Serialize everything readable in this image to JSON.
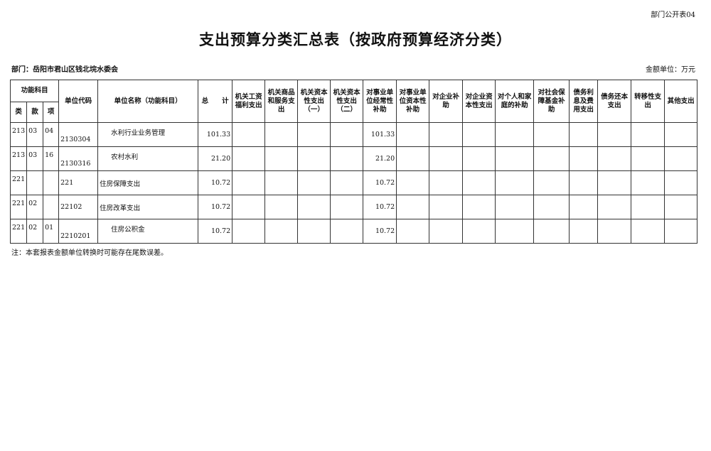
{
  "form_no": "部门公开表04",
  "title": "支出预算分类汇总表（按政府预算经济分类）",
  "department": "部门：岳阳市君山区钱北垸水委会",
  "unit": "金额单位：万元",
  "headers": {
    "func_group": "功能科目",
    "lei": "类",
    "kuan": "款",
    "xiang": "项",
    "code": "单位代码",
    "name": "单位名称（功能科目）",
    "total": "总　　计",
    "cols": [
      "机关工资福利支出",
      "机关商品和服务支出",
      "机关资本性支出（一）",
      "机关资本性支出（二）",
      "对事业单位经常性补助",
      "对事业单位资本性补助",
      "对企业补助",
      "对企业资本性支出",
      "对个人和家庭的补助",
      "对社会保障基金补助",
      "债务利息及费用支出",
      "债务还本支出",
      "转移性支出",
      "其他支出"
    ]
  },
  "rows": [
    {
      "lei": "213",
      "kuan": "03",
      "xiang": "04",
      "code": "2130304",
      "name": "水利行业业务管理",
      "indent": true,
      "total": "101.33",
      "c5": "101.33"
    },
    {
      "lei": "213",
      "kuan": "03",
      "xiang": "16",
      "code": "2130316",
      "name": "农村水利",
      "indent": true,
      "total": "21.20",
      "c5": "21.20"
    },
    {
      "lei": "221",
      "kuan": "",
      "xiang": "",
      "code": "221",
      "name": "住房保障支出",
      "indent": false,
      "total": "10.72",
      "c5": "10.72"
    },
    {
      "lei": "221",
      "kuan": "02",
      "xiang": "",
      "code": "22102",
      "name": "住房改革支出",
      "indent": false,
      "total": "10.72",
      "c5": "10.72"
    },
    {
      "lei": "221",
      "kuan": "02",
      "xiang": "01",
      "code": "2210201",
      "name": "住房公积金",
      "indent": true,
      "total": "10.72",
      "c5": "10.72"
    }
  ],
  "note": "注：本套报表金额单位转换时可能存在尾数误差。"
}
